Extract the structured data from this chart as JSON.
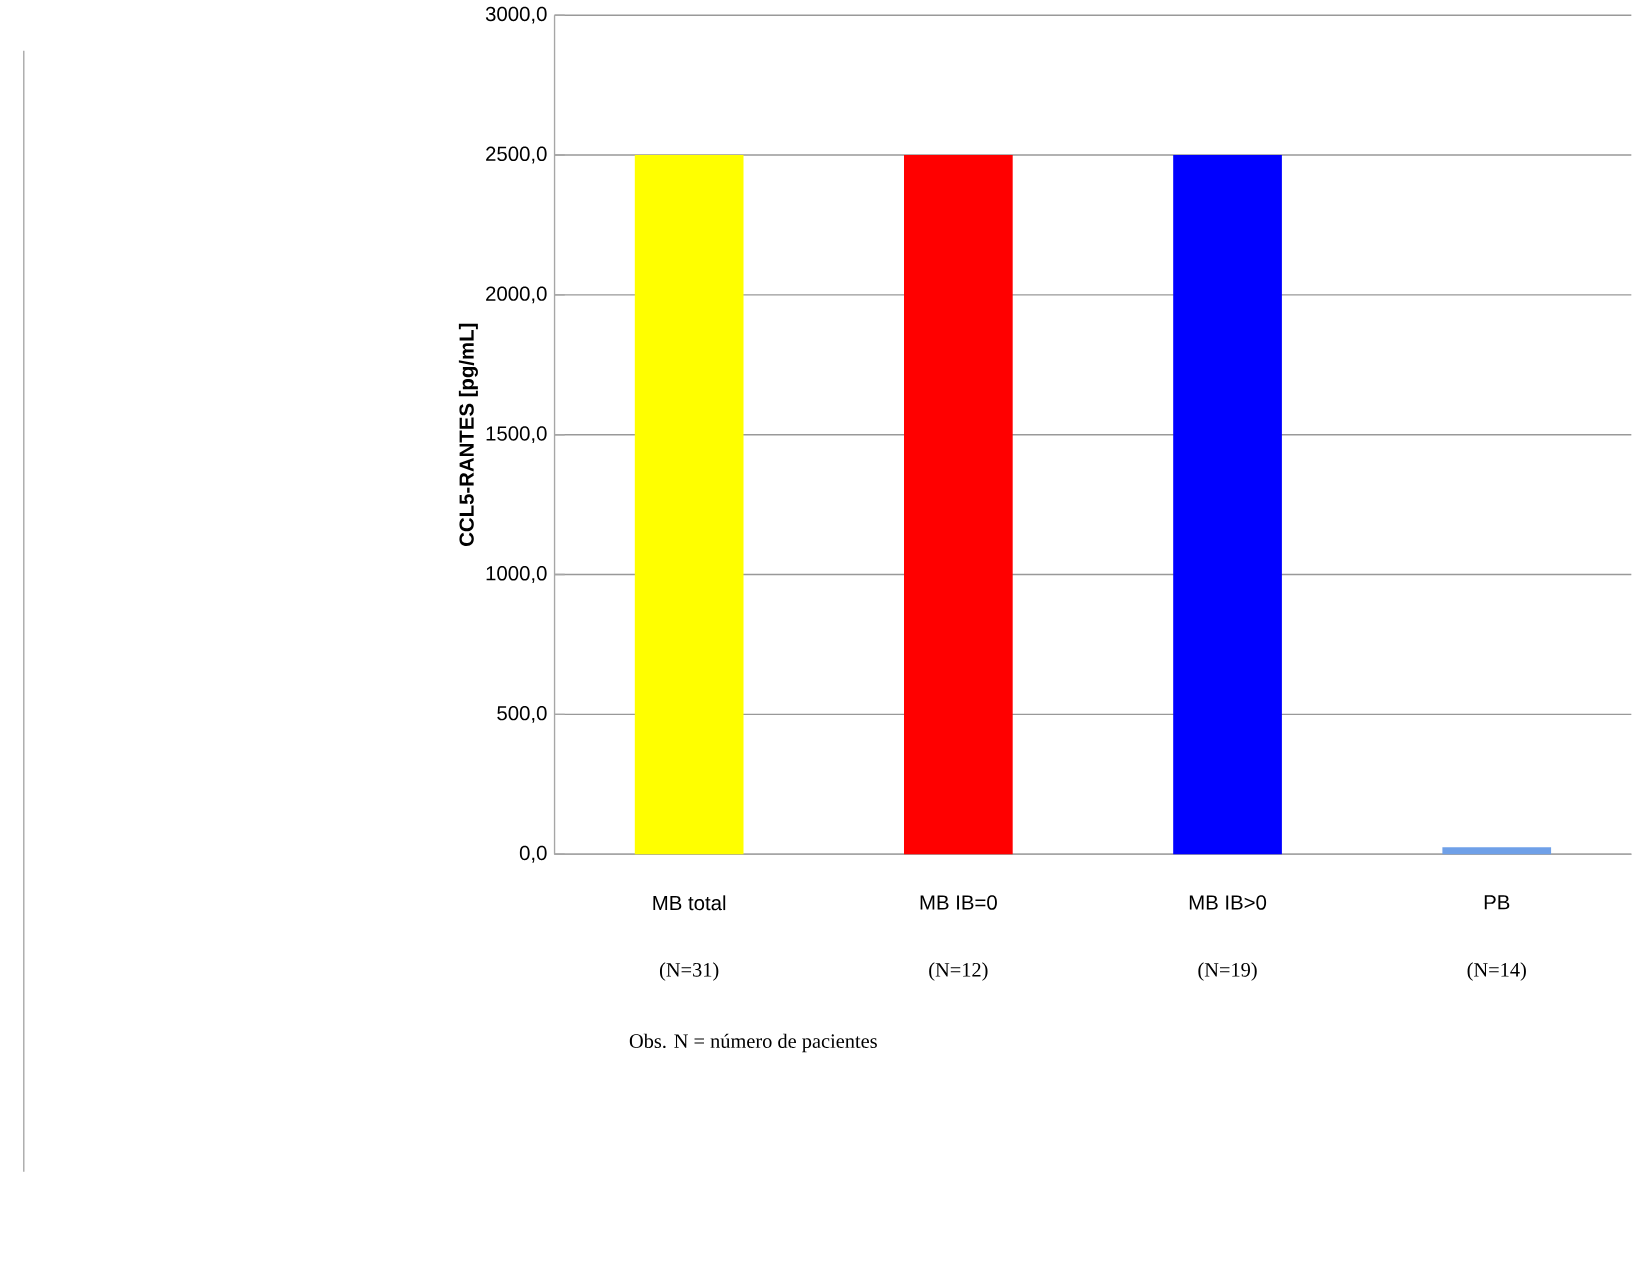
{
  "chart_data": {
    "type": "bar",
    "ylabel": "CCL5-RANTES [pg/mL]",
    "categories": [
      "MB total",
      "MB IB=0",
      "MB IB>0",
      "PB"
    ],
    "values": [
      2500,
      2500,
      2500,
      25
    ],
    "colors": [
      "#ffff00",
      "#ff0000",
      "#0000ff",
      "#6fa0e8"
    ],
    "ylim": [
      0,
      3000
    ],
    "yticks": [
      {
        "value": 0,
        "label": "0,0"
      },
      {
        "value": 500,
        "label": "500,0"
      },
      {
        "value": 1000,
        "label": "1000,0"
      },
      {
        "value": 1500,
        "label": "1500,0"
      },
      {
        "value": 2000,
        "label": "2000,0"
      },
      {
        "value": 2500,
        "label": "2500,0"
      },
      {
        "value": 3000,
        "label": "3000,0"
      }
    ],
    "grid": "y",
    "annotations": [
      "(N=31)",
      "(N=12)",
      "(N=19)",
      "(N=14)",
      "Obs. N = número de pacientes"
    ]
  }
}
